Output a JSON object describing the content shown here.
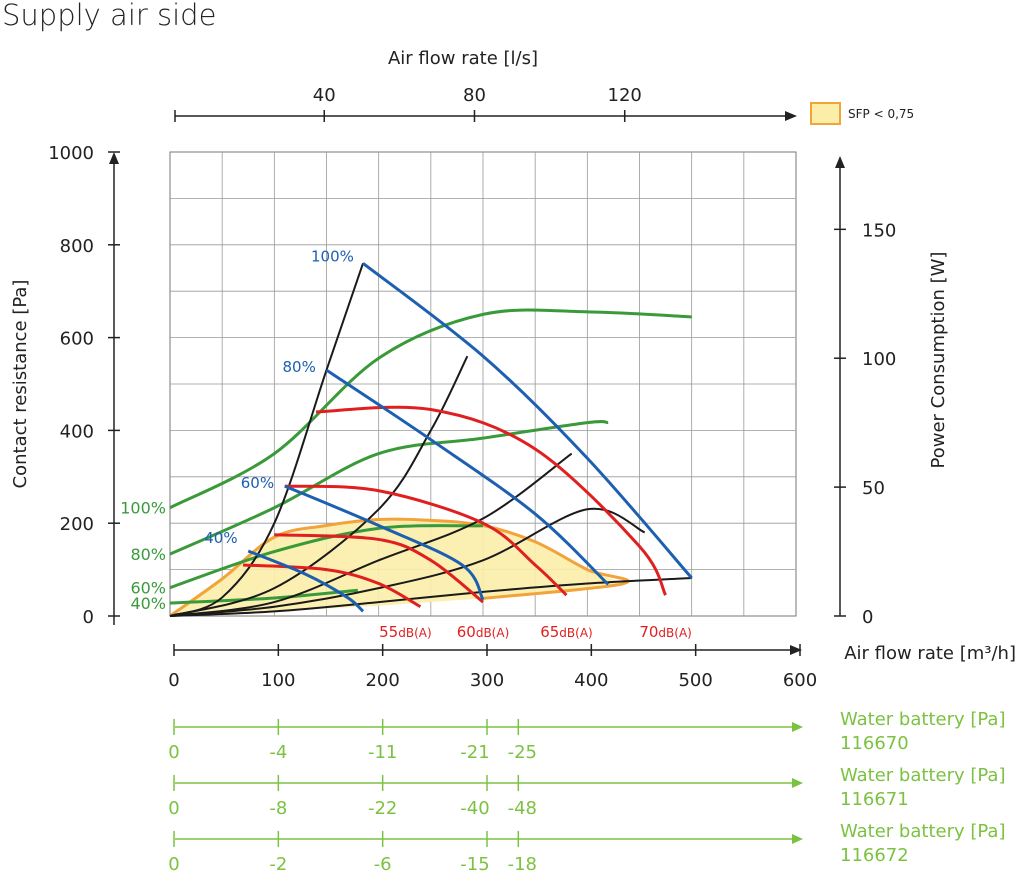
{
  "title": "Supply air side",
  "chart_data": {
    "type": "line",
    "x_axis": {
      "label": "Air flow rate [m³/h]",
      "range": [
        0,
        600
      ],
      "ticks": [
        0,
        100,
        200,
        300,
        400,
        500,
        600
      ]
    },
    "top_axis": {
      "label": "Air flow rate [l/s]",
      "ticks": [
        40,
        80,
        120
      ]
    },
    "y_axis": {
      "label": "Contact resistance [Pa]",
      "range": [
        0,
        1000
      ],
      "ticks": [
        0,
        200,
        400,
        600,
        800,
        1000
      ]
    },
    "y2_axis": {
      "label": "Power Consumption [W]",
      "range": [
        0,
        180
      ],
      "ticks": [
        0,
        50,
        100,
        150
      ]
    },
    "grid": true,
    "legend": {
      "label": "SFP < 0,75",
      "color": "#fbeea8",
      "border": "#f2a33a",
      "position": "top-right"
    },
    "sfp_region": [
      [
        0,
        0
      ],
      [
        50,
        80
      ],
      [
        100,
        170
      ],
      [
        150,
        195
      ],
      [
        200,
        208
      ],
      [
        250,
        206
      ],
      [
        300,
        195
      ],
      [
        350,
        160
      ],
      [
        400,
        100
      ],
      [
        435,
        70
      ],
      [
        300,
        38
      ],
      [
        200,
        22
      ],
      [
        100,
        10
      ],
      [
        0,
        0
      ]
    ],
    "system_curves": [
      {
        "x": [
          0,
          50,
          100,
          150,
          185
        ],
        "y": [
          0,
          40,
          200,
          530,
          760
        ]
      },
      {
        "x": [
          0,
          100,
          200,
          250,
          285
        ],
        "y": [
          0,
          60,
          230,
          400,
          560
        ]
      },
      {
        "x": [
          0,
          100,
          200,
          300,
          385
        ],
        "y": [
          0,
          30,
          120,
          210,
          350
        ]
      },
      {
        "x": [
          0,
          100,
          200,
          300,
          400,
          455
        ],
        "y": [
          0,
          20,
          60,
          120,
          230,
          180
        ]
      },
      {
        "x": [
          0,
          100,
          200,
          300,
          400,
          500
        ],
        "y": [
          0,
          10,
          30,
          52,
          70,
          82
        ]
      }
    ],
    "fan_curves": [
      {
        "label": "100%",
        "x": [
          185,
          300,
          400,
          500
        ],
        "y": [
          760,
          560,
          340,
          82
        ]
      },
      {
        "label": "80%",
        "x": [
          150,
          250,
          350,
          420
        ],
        "y": [
          530,
          380,
          220,
          68
        ]
      },
      {
        "label": "60%",
        "x": [
          110,
          200,
          280,
          300
        ],
        "y": [
          280,
          195,
          110,
          35
        ]
      },
      {
        "label": "40%",
        "x": [
          75,
          130,
          170,
          185
        ],
        "y": [
          140,
          90,
          40,
          10
        ]
      }
    ],
    "power_curves": [
      {
        "label": "100%",
        "x": [
          0,
          100,
          200,
          300,
          400,
          500
        ],
        "y_w": [
          42,
          63,
          100,
          117,
          118,
          116
        ]
      },
      {
        "label": "80%",
        "x": [
          0,
          100,
          200,
          300,
          400,
          420
        ],
        "y_w": [
          24,
          42,
          63,
          69,
          75,
          75
        ]
      },
      {
        "label": "60%",
        "x": [
          0,
          100,
          200,
          300
        ],
        "y_w": [
          11,
          25,
          34,
          35
        ]
      },
      {
        "label": "40%",
        "x": [
          0,
          100,
          180
        ],
        "y_w": [
          5,
          7,
          10
        ]
      }
    ],
    "sound_curves": [
      {
        "label": "55",
        "x": [
          70,
          150,
          200,
          240
        ],
        "y": [
          110,
          100,
          70,
          20
        ]
      },
      {
        "label": "60",
        "x": [
          100,
          200,
          250,
          300
        ],
        "y": [
          175,
          165,
          120,
          30
        ]
      },
      {
        "label": "65",
        "x": [
          110,
          200,
          300,
          350,
          380
        ],
        "y": [
          280,
          270,
          200,
          110,
          45
        ]
      },
      {
        "label": "70",
        "x": [
          140,
          250,
          350,
          450,
          475
        ],
        "y": [
          440,
          445,
          360,
          150,
          45
        ]
      }
    ],
    "sound_unit": "dB(A)",
    "water_batteries": [
      {
        "label": "Water battery [Pa]",
        "id": "116670",
        "values": [
          "0",
          "-4",
          "-11",
          "-21",
          "-25"
        ]
      },
      {
        "label": "Water battery [Pa]",
        "id": "116671",
        "values": [
          "0",
          "-8",
          "-22",
          "-40",
          "-48"
        ]
      },
      {
        "label": "Water battery [Pa]",
        "id": "116672",
        "values": [
          "0",
          "-2",
          "-6",
          "-15",
          "-18"
        ]
      }
    ],
    "water_battery_x": [
      0,
      100,
      200,
      300,
      330
    ]
  }
}
